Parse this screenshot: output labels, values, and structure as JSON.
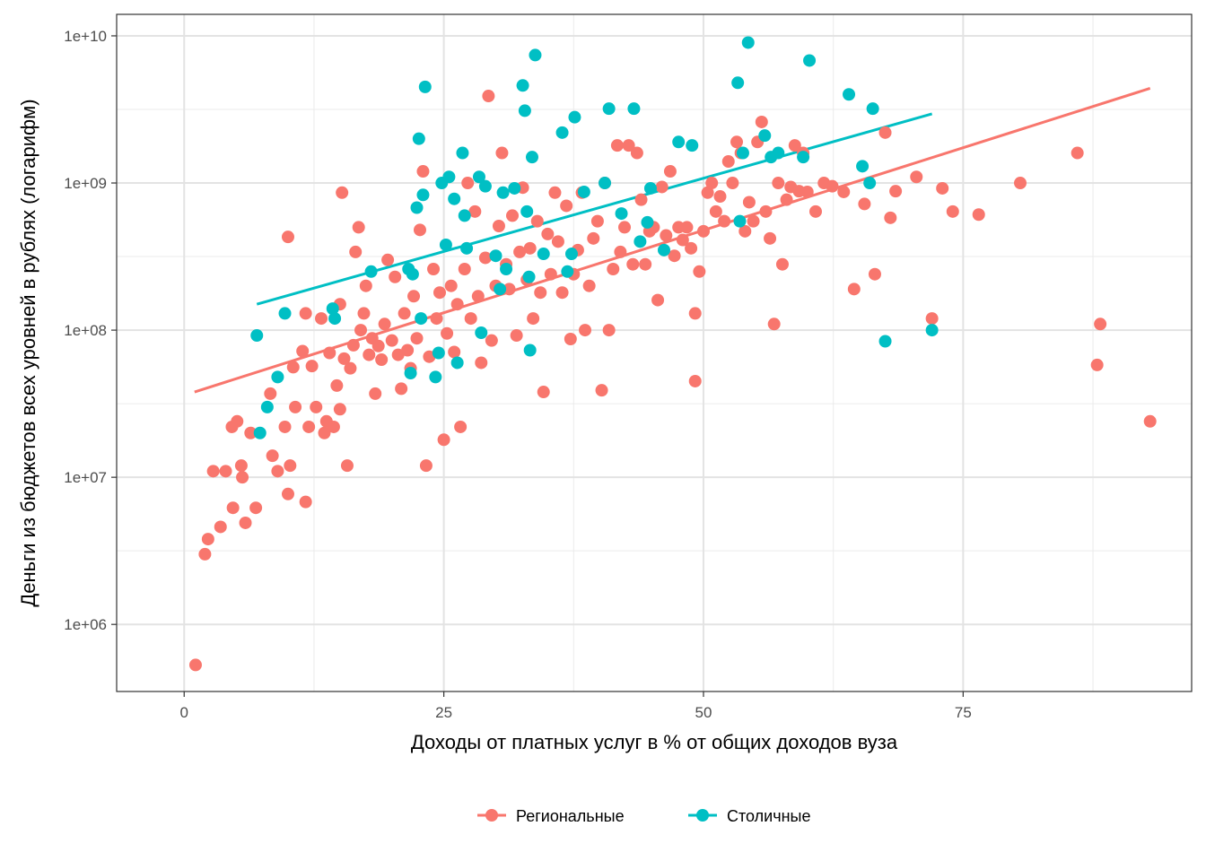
{
  "chart_data": {
    "type": "scatter",
    "xlabel": "Доходы от платных услуг в % от общих доходов вуза",
    "ylabel": "Деньги из бюджетов всех уровней в рублях (логарифм)",
    "xlim": [
      -6.5,
      97
    ],
    "ylim": [
      350000,
      14000000000
    ],
    "yscale": "log10",
    "x_ticks": [
      {
        "value": 0,
        "label": "0"
      },
      {
        "value": 25,
        "label": "25"
      },
      {
        "value": 50,
        "label": "50"
      },
      {
        "value": 75,
        "label": "75"
      }
    ],
    "y_ticks": [
      {
        "value": 1000000,
        "label": "1e+06"
      },
      {
        "value": 10000000,
        "label": "1e+07"
      },
      {
        "value": 100000000,
        "label": "1e+08"
      },
      {
        "value": 1000000000,
        "label": "1e+09"
      },
      {
        "value": 10000000000,
        "label": "1e+10"
      }
    ],
    "grid": true,
    "legend_position": "bottom",
    "series": [
      {
        "name": "Региональные",
        "color": "#F8766D",
        "points": [
          [
            1.1,
            530000
          ],
          [
            2.0,
            3000000
          ],
          [
            2.3,
            3800000
          ],
          [
            2.8,
            11000000
          ],
          [
            3.5,
            4600000
          ],
          [
            4.0,
            11000000
          ],
          [
            4.6,
            22000000
          ],
          [
            4.7,
            6200000
          ],
          [
            5.1,
            24000000
          ],
          [
            5.5,
            12000000
          ],
          [
            5.6,
            10000000
          ],
          [
            5.9,
            4900000
          ],
          [
            6.4,
            20000000
          ],
          [
            6.9,
            6200000
          ],
          [
            8.3,
            37000000
          ],
          [
            8.5,
            14000000
          ],
          [
            9.0,
            11000000
          ],
          [
            9.7,
            22000000
          ],
          [
            10.0,
            430000000
          ],
          [
            10.0,
            7700000
          ],
          [
            10.2,
            12000000
          ],
          [
            10.5,
            56000000
          ],
          [
            10.7,
            30000000
          ],
          [
            11.4,
            72000000
          ],
          [
            11.7,
            6800000
          ],
          [
            11.7,
            130000000
          ],
          [
            12.0,
            22000000
          ],
          [
            12.3,
            57000000
          ],
          [
            12.7,
            30000000
          ],
          [
            13.2,
            120000000
          ],
          [
            13.5,
            20000000
          ],
          [
            13.7,
            24000000
          ],
          [
            14.0,
            70000000
          ],
          [
            14.4,
            22000000
          ],
          [
            14.7,
            42000000
          ],
          [
            15.0,
            29000000
          ],
          [
            15.0,
            150000000
          ],
          [
            15.2,
            860000000
          ],
          [
            15.4,
            64000000
          ],
          [
            15.7,
            12000000
          ],
          [
            16.0,
            55000000
          ],
          [
            16.3,
            79000000
          ],
          [
            16.5,
            340000000
          ],
          [
            16.8,
            500000000
          ],
          [
            17.0,
            100000000
          ],
          [
            17.3,
            130000000
          ],
          [
            17.5,
            200000000
          ],
          [
            17.8,
            68000000
          ],
          [
            18.1,
            88000000
          ],
          [
            18.4,
            37000000
          ],
          [
            18.7,
            78000000
          ],
          [
            19.0,
            63000000
          ],
          [
            19.3,
            110000000
          ],
          [
            19.6,
            300000000
          ],
          [
            20.0,
            85000000
          ],
          [
            20.3,
            230000000
          ],
          [
            20.6,
            68000000
          ],
          [
            20.9,
            40000000
          ],
          [
            21.2,
            130000000
          ],
          [
            21.5,
            73000000
          ],
          [
            21.8,
            55000000
          ],
          [
            22.1,
            170000000
          ],
          [
            22.4,
            88000000
          ],
          [
            22.7,
            480000000
          ],
          [
            23.0,
            1200000000
          ],
          [
            23.3,
            12000000
          ],
          [
            23.6,
            66000000
          ],
          [
            24.0,
            260000000
          ],
          [
            24.3,
            120000000
          ],
          [
            24.6,
            180000000
          ],
          [
            25.0,
            18000000
          ],
          [
            25.3,
            95000000
          ],
          [
            25.7,
            200000000
          ],
          [
            26.0,
            71000000
          ],
          [
            26.3,
            150000000
          ],
          [
            26.6,
            22000000
          ],
          [
            27.0,
            260000000
          ],
          [
            27.3,
            1000000000
          ],
          [
            27.6,
            120000000
          ],
          [
            28.0,
            640000000
          ],
          [
            28.3,
            170000000
          ],
          [
            28.6,
            60000000
          ],
          [
            29.0,
            310000000
          ],
          [
            29.3,
            3900000000
          ],
          [
            29.6,
            85000000
          ],
          [
            30.0,
            200000000
          ],
          [
            30.3,
            510000000
          ],
          [
            30.6,
            1600000000
          ],
          [
            31.0,
            280000000
          ],
          [
            31.3,
            190000000
          ],
          [
            31.6,
            600000000
          ],
          [
            32.0,
            92000000
          ],
          [
            32.3,
            340000000
          ],
          [
            32.6,
            930000000
          ],
          [
            33.0,
            220000000
          ],
          [
            33.3,
            360000000
          ],
          [
            33.6,
            120000000
          ],
          [
            34.0,
            550000000
          ],
          [
            34.3,
            180000000
          ],
          [
            34.6,
            38000000
          ],
          [
            35.0,
            450000000
          ],
          [
            35.3,
            240000000
          ],
          [
            35.7,
            860000000
          ],
          [
            36.0,
            400000000
          ],
          [
            36.4,
            180000000
          ],
          [
            36.8,
            700000000
          ],
          [
            37.2,
            87000000
          ],
          [
            37.5,
            240000000
          ],
          [
            37.9,
            350000000
          ],
          [
            38.3,
            860000000
          ],
          [
            38.6,
            100000000
          ],
          [
            39.0,
            200000000
          ],
          [
            39.4,
            420000000
          ],
          [
            39.8,
            550000000
          ],
          [
            40.2,
            39000000
          ],
          [
            40.5,
            1000000000
          ],
          [
            40.9,
            100000000
          ],
          [
            41.3,
            260000000
          ],
          [
            41.7,
            1800000000
          ],
          [
            42.0,
            340000000
          ],
          [
            42.4,
            500000000
          ],
          [
            42.8,
            1800000000
          ],
          [
            43.2,
            280000000
          ],
          [
            43.6,
            1600000000
          ],
          [
            44.0,
            770000000
          ],
          [
            44.4,
            280000000
          ],
          [
            44.8,
            470000000
          ],
          [
            45.2,
            500000000
          ],
          [
            45.6,
            160000000
          ],
          [
            46.0,
            940000000
          ],
          [
            46.4,
            440000000
          ],
          [
            46.8,
            1200000000
          ],
          [
            47.2,
            320000000
          ],
          [
            47.6,
            500000000
          ],
          [
            48.0,
            410000000
          ],
          [
            48.4,
            500000000
          ],
          [
            48.8,
            360000000
          ],
          [
            49.2,
            45000000
          ],
          [
            49.2,
            130000000
          ],
          [
            49.6,
            250000000
          ],
          [
            50.0,
            470000000
          ],
          [
            50.4,
            860000000
          ],
          [
            50.8,
            1000000000
          ],
          [
            51.2,
            640000000
          ],
          [
            51.6,
            810000000
          ],
          [
            52.0,
            550000000
          ],
          [
            52.4,
            1400000000
          ],
          [
            52.8,
            1000000000
          ],
          [
            53.2,
            1900000000
          ],
          [
            53.6,
            1600000000
          ],
          [
            54.0,
            470000000
          ],
          [
            54.4,
            740000000
          ],
          [
            54.8,
            550000000
          ],
          [
            55.2,
            1900000000
          ],
          [
            55.6,
            2600000000
          ],
          [
            56.0,
            640000000
          ],
          [
            56.4,
            420000000
          ],
          [
            56.8,
            110000000
          ],
          [
            57.2,
            1000000000
          ],
          [
            57.6,
            280000000
          ],
          [
            58.0,
            770000000
          ],
          [
            58.4,
            940000000
          ],
          [
            58.8,
            1800000000
          ],
          [
            59.2,
            880000000
          ],
          [
            59.6,
            1600000000
          ],
          [
            60.0,
            870000000
          ],
          [
            60.8,
            640000000
          ],
          [
            61.6,
            1000000000
          ],
          [
            62.4,
            950000000
          ],
          [
            63.5,
            870000000
          ],
          [
            64.5,
            190000000
          ],
          [
            65.5,
            720000000
          ],
          [
            66.5,
            240000000
          ],
          [
            67.5,
            2200000000
          ],
          [
            68.0,
            580000000
          ],
          [
            68.5,
            880000000
          ],
          [
            70.5,
            1100000000
          ],
          [
            72.0,
            120000000
          ],
          [
            73.0,
            920000000
          ],
          [
            74.0,
            640000000
          ],
          [
            76.5,
            610000000
          ],
          [
            80.5,
            1000000000
          ],
          [
            86.0,
            1600000000
          ],
          [
            87.9,
            58000000
          ],
          [
            88.2,
            110000000
          ],
          [
            93.0,
            24000000
          ]
        ],
        "trend": {
          "x": [
            1,
            93
          ],
          "y": [
            38000000,
            4400000000
          ]
        }
      },
      {
        "name": "Столичные",
        "color": "#00BFC4",
        "points": [
          [
            7.0,
            92000000
          ],
          [
            7.3,
            20000000
          ],
          [
            8.0,
            30000000
          ],
          [
            9.0,
            48000000
          ],
          [
            9.7,
            130000000
          ],
          [
            14.3,
            140000000
          ],
          [
            14.5,
            120000000
          ],
          [
            18.0,
            250000000
          ],
          [
            21.6,
            260000000
          ],
          [
            21.8,
            51000000
          ],
          [
            22.0,
            240000000
          ],
          [
            22.4,
            680000000
          ],
          [
            22.6,
            2000000000
          ],
          [
            22.8,
            120000000
          ],
          [
            23.0,
            830000000
          ],
          [
            23.2,
            4500000000
          ],
          [
            24.2,
            48000000
          ],
          [
            24.5,
            70000000
          ],
          [
            24.8,
            1000000000
          ],
          [
            25.2,
            380000000
          ],
          [
            25.5,
            1100000000
          ],
          [
            26.0,
            780000000
          ],
          [
            26.3,
            60000000
          ],
          [
            26.8,
            1600000000
          ],
          [
            27.0,
            600000000
          ],
          [
            27.2,
            360000000
          ],
          [
            28.4,
            1100000000
          ],
          [
            28.6,
            96000000
          ],
          [
            29.0,
            950000000
          ],
          [
            30.0,
            320000000
          ],
          [
            30.4,
            190000000
          ],
          [
            30.7,
            860000000
          ],
          [
            31.0,
            260000000
          ],
          [
            31.8,
            920000000
          ],
          [
            32.6,
            4600000000
          ],
          [
            32.8,
            3100000000
          ],
          [
            33.0,
            640000000
          ],
          [
            33.2,
            230000000
          ],
          [
            33.3,
            73000000
          ],
          [
            33.5,
            1500000000
          ],
          [
            33.8,
            7400000000
          ],
          [
            34.6,
            330000000
          ],
          [
            36.4,
            2200000000
          ],
          [
            36.9,
            250000000
          ],
          [
            37.3,
            330000000
          ],
          [
            37.6,
            2800000000
          ],
          [
            38.5,
            870000000
          ],
          [
            40.5,
            1000000000
          ],
          [
            40.9,
            3200000000
          ],
          [
            42.1,
            620000000
          ],
          [
            43.3,
            3200000000
          ],
          [
            43.9,
            400000000
          ],
          [
            44.6,
            540000000
          ],
          [
            44.9,
            920000000
          ],
          [
            46.2,
            350000000
          ],
          [
            47.6,
            1900000000
          ],
          [
            48.9,
            1800000000
          ],
          [
            53.3,
            4800000000
          ],
          [
            53.5,
            550000000
          ],
          [
            53.8,
            1600000000
          ],
          [
            54.3,
            9000000000
          ],
          [
            55.9,
            2100000000
          ],
          [
            56.5,
            1500000000
          ],
          [
            57.2,
            1600000000
          ],
          [
            59.6,
            1500000000
          ],
          [
            60.2,
            6800000000
          ],
          [
            64.0,
            4000000000
          ],
          [
            65.3,
            1300000000
          ],
          [
            66.0,
            1000000000
          ],
          [
            66.3,
            3200000000
          ],
          [
            67.5,
            84000000
          ],
          [
            72.0,
            100000000
          ]
        ],
        "trend": {
          "x": [
            7,
            72
          ],
          "y": [
            150000000,
            2950000000
          ]
        }
      }
    ]
  }
}
